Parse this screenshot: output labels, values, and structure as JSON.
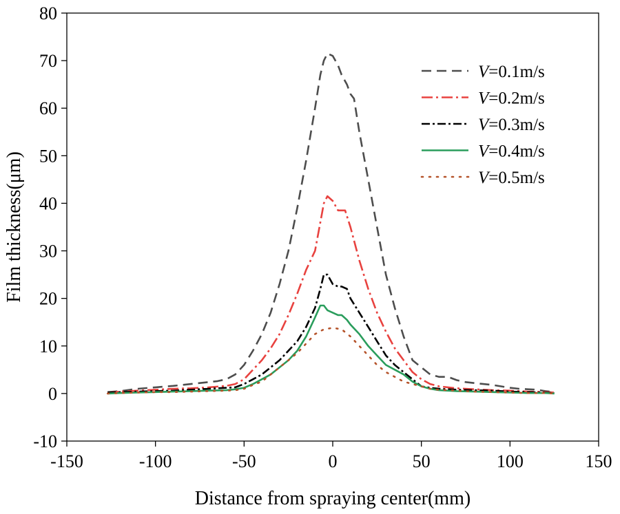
{
  "chart_data": {
    "type": "line",
    "xlabel": "Distance from spraying center(mm)",
    "ylabel": "Film thickness(μm)",
    "xlim": [
      -150,
      150
    ],
    "ylim": [
      -10,
      80
    ],
    "xticks": [
      -150,
      -100,
      -50,
      0,
      50,
      100,
      150
    ],
    "yticks": [
      -10,
      0,
      10,
      20,
      30,
      40,
      50,
      60,
      70,
      80
    ],
    "grid": false,
    "legend_position": "top-right",
    "series": [
      {
        "name": "V=0.1m/s",
        "legend_var": "V",
        "legend_value": "=0.1m/s",
        "color": "#4d4d4d",
        "dash": "14 8",
        "x": [
          -127,
          -120,
          -110,
          -100,
          -90,
          -80,
          -70,
          -65,
          -60,
          -55,
          -50,
          -45,
          -40,
          -35,
          -30,
          -25,
          -20,
          -15,
          -10,
          -7,
          -5,
          -3,
          0,
          3,
          5,
          8,
          10,
          12,
          15,
          20,
          25,
          30,
          35,
          40,
          45,
          50,
          55,
          60,
          65,
          70,
          75,
          80,
          85,
          90,
          95,
          100,
          105,
          110,
          115,
          120,
          125
        ],
        "y": [
          0.3,
          0.5,
          1.0,
          1.3,
          1.6,
          2.0,
          2.4,
          2.6,
          3.0,
          4.0,
          6.0,
          9.0,
          12.5,
          17.0,
          23.0,
          30.0,
          39.0,
          49.0,
          60.0,
          67.0,
          70.0,
          71.5,
          71.0,
          69.0,
          67.0,
          65.0,
          63.0,
          62.0,
          55.0,
          45.0,
          35.0,
          25.0,
          18.0,
          12.0,
          7.0,
          5.5,
          4.0,
          3.5,
          3.5,
          2.8,
          2.4,
          2.2,
          2.0,
          1.8,
          1.5,
          1.2,
          1.0,
          0.9,
          0.8,
          0.5,
          0.3
        ]
      },
      {
        "name": "V=0.2m/s",
        "legend_var": "V",
        "legend_value": "=0.2m/s",
        "color": "#e8423f",
        "dash": "16 5 3 5",
        "x": [
          -127,
          -120,
          -110,
          -100,
          -90,
          -80,
          -70,
          -60,
          -55,
          -50,
          -45,
          -40,
          -35,
          -30,
          -25,
          -20,
          -15,
          -10,
          -7,
          -5,
          -3,
          0,
          3,
          5,
          7,
          10,
          15,
          20,
          25,
          30,
          35,
          40,
          45,
          50,
          55,
          60,
          65,
          70,
          75,
          80,
          90,
          100,
          110,
          120,
          125
        ],
        "y": [
          0.2,
          0.4,
          0.6,
          0.8,
          1.0,
          1.1,
          1.3,
          1.6,
          2.0,
          3.0,
          5.0,
          7.0,
          9.5,
          12.5,
          16.5,
          21.0,
          26.0,
          30.0,
          36.0,
          40.0,
          41.5,
          40.5,
          38.5,
          38.5,
          38.5,
          35.0,
          28.0,
          22.0,
          17.0,
          13.0,
          9.5,
          7.0,
          4.5,
          3.0,
          2.0,
          1.5,
          1.3,
          1.1,
          1.0,
          0.9,
          0.7,
          0.6,
          0.4,
          0.3,
          0.2
        ]
      },
      {
        "name": "V=0.3m/s",
        "legend_var": "V",
        "legend_value": "=0.3m/s",
        "color": "#000000",
        "dash": "12 4 3 4",
        "x": [
          -127,
          -120,
          -110,
          -100,
          -90,
          -80,
          -70,
          -60,
          -55,
          -50,
          -45,
          -40,
          -35,
          -30,
          -25,
          -20,
          -15,
          -10,
          -7,
          -5,
          -3,
          0,
          3,
          5,
          8,
          10,
          15,
          20,
          25,
          30,
          35,
          40,
          45,
          50,
          55,
          60,
          70,
          80,
          90,
          100,
          110,
          120,
          125
        ],
        "y": [
          0.2,
          0.3,
          0.4,
          0.5,
          0.6,
          0.8,
          1.0,
          1.2,
          1.3,
          2.0,
          3.0,
          4.0,
          5.5,
          7.0,
          9.0,
          11.0,
          14.0,
          18.0,
          22.0,
          25.0,
          25.0,
          23.0,
          22.5,
          22.5,
          22.0,
          20.0,
          17.0,
          14.0,
          11.0,
          8.0,
          6.0,
          4.5,
          3.0,
          1.5,
          1.2,
          1.0,
          0.8,
          0.7,
          0.6,
          0.4,
          0.3,
          0.2,
          0.1
        ]
      },
      {
        "name": "V=0.4m/s",
        "legend_var": "V",
        "legend_value": "=0.4m/s",
        "color": "#2a9d5c",
        "dash": "",
        "x": [
          -127,
          -120,
          -110,
          -100,
          -90,
          -80,
          -70,
          -60,
          -55,
          -50,
          -45,
          -40,
          -35,
          -30,
          -25,
          -20,
          -15,
          -10,
          -7,
          -5,
          -3,
          0,
          3,
          5,
          8,
          10,
          15,
          20,
          25,
          30,
          35,
          40,
          45,
          50,
          55,
          60,
          70,
          80,
          90,
          100,
          110,
          120,
          125
        ],
        "y": [
          0.0,
          0.1,
          0.2,
          0.3,
          0.4,
          0.5,
          0.6,
          0.7,
          0.9,
          1.2,
          2.0,
          3.0,
          4.0,
          5.5,
          7.0,
          9.0,
          12.0,
          16.0,
          18.5,
          18.5,
          17.5,
          17.0,
          16.5,
          16.5,
          15.5,
          14.5,
          12.5,
          10.0,
          8.0,
          6.0,
          5.0,
          4.0,
          2.5,
          1.5,
          1.0,
          0.7,
          0.5,
          0.4,
          0.3,
          0.2,
          0.1,
          0.1,
          0.0
        ]
      },
      {
        "name": "V=0.5m/s",
        "legend_var": "V",
        "legend_value": "=0.5m/s",
        "color": "#b5532a",
        "dash": "2 9",
        "x": [
          -127,
          -120,
          -110,
          -100,
          -90,
          -80,
          -70,
          -60,
          -55,
          -50,
          -45,
          -40,
          -35,
          -30,
          -25,
          -20,
          -15,
          -10,
          -5,
          0,
          5,
          10,
          15,
          20,
          25,
          30,
          35,
          40,
          45,
          50,
          55,
          60,
          70,
          80,
          90,
          100,
          110,
          120,
          125
        ],
        "y": [
          0.0,
          0.1,
          0.2,
          0.3,
          0.3,
          0.4,
          0.5,
          0.6,
          0.7,
          1.0,
          1.8,
          2.5,
          4.0,
          5.5,
          7.0,
          8.5,
          10.5,
          12.5,
          13.5,
          13.8,
          13.5,
          12.0,
          10.0,
          8.0,
          6.0,
          4.5,
          3.5,
          2.5,
          2.0,
          1.5,
          1.0,
          0.8,
          0.6,
          0.4,
          0.3,
          0.2,
          0.1,
          0.1,
          0.0
        ]
      }
    ]
  }
}
